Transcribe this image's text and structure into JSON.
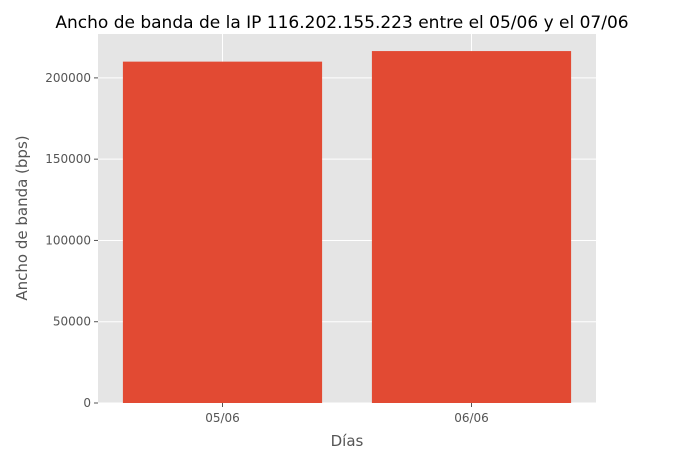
{
  "chart_data": {
    "type": "bar",
    "title": "Ancho de banda de la IP 116.202.155.223 entre el 05/06 y el 07/06",
    "xlabel": "Días",
    "ylabel": "Ancho de banda (bps)",
    "categories": [
      "05/06",
      "06/06"
    ],
    "values": [
      210000,
      216500
    ],
    "ylim": [
      0,
      227000
    ],
    "yticks": [
      0,
      50000,
      100000,
      150000,
      200000
    ],
    "grid": true,
    "legend": "none",
    "colors": {
      "bar": "#E24A33",
      "plot_background": "#E5E5E5",
      "grid": "#FFFFFF",
      "text": "#555555",
      "title": "#000000"
    }
  }
}
